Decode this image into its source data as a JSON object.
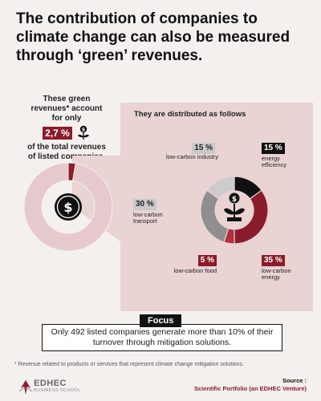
{
  "title": "The contribution of companies to climate change can also be measured through ‘green’ revenues.",
  "left": {
    "text_before": "These green revenues* account for only",
    "percentage": "2,7 %",
    "text_after": "of the total revenues of listed companies.",
    "share_value": 2.7
  },
  "panel": {
    "title": "They are distributed as follows"
  },
  "chart_data": {
    "type": "pie",
    "categories": [
      "energy efficiency",
      "low-carbon energy",
      "low-carbon food",
      "low-carbon transport",
      "low-carbon industry"
    ],
    "values": [
      15,
      35,
      5,
      30,
      15
    ],
    "labels": [
      "15 %",
      "35 %",
      "5 %",
      "30 %",
      "15 %"
    ],
    "colors": [
      "#111111",
      "#8a1c2b",
      "#b0303f",
      "#8f8f8f",
      "#cccccc"
    ]
  },
  "focus": {
    "tag": "Focus",
    "text": "Only 492 listed companies generate more than 10% of their turnover through mitigation solutions."
  },
  "footnote": "* Revenue related to products or services that represent climate change mitigation solutions.",
  "logo": {
    "name": "EDHEC",
    "sub": "BUSINESS SCHOOL"
  },
  "source": {
    "label": "Source :",
    "value": "Scientific Portfolio (an EDHEC Venture)"
  },
  "icons": {
    "dollar": "dollar-coin-icon",
    "plant": "money-plant-icon"
  },
  "colors": {
    "accent": "#8a1c2b",
    "panel": "#e9d3d3",
    "background": "#f4f0ee"
  }
}
